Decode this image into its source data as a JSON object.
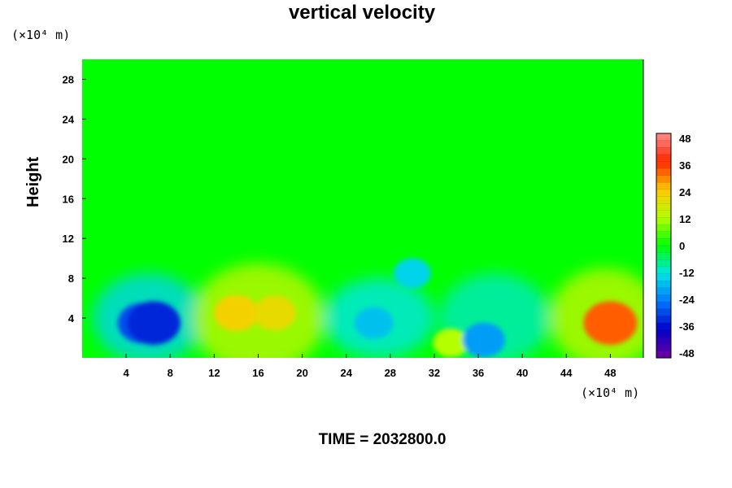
{
  "chart_data": {
    "type": "heatmap",
    "title": "vertical velocity",
    "xlabel": "",
    "ylabel": "Height",
    "x_unit": "(×10⁴ m)",
    "y_unit": "(×10⁴ m)",
    "time_label": "TIME = 2032800.0",
    "xlim": [
      0,
      51
    ],
    "ylim": [
      0,
      30
    ],
    "x_ticks": [
      "4",
      "8",
      "12",
      "16",
      "20",
      "24",
      "28",
      "32",
      "36",
      "40",
      "44",
      "48"
    ],
    "y_ticks": [
      "4",
      "8",
      "12",
      "16",
      "20",
      "24",
      "28"
    ],
    "colorbar": {
      "min": -48,
      "max": 48,
      "ticks": [
        "48",
        "36",
        "24",
        "12",
        "0",
        "-12",
        "-24",
        "-36",
        "-48"
      ]
    },
    "features": [
      {
        "x": 5.5,
        "y": 3.5,
        "value": -28
      },
      {
        "x": 6.5,
        "y": 3.5,
        "value": -32
      },
      {
        "x": 14,
        "y": 4.5,
        "value": 22
      },
      {
        "x": 17.5,
        "y": 4.5,
        "value": 20
      },
      {
        "x": 26.5,
        "y": 3.5,
        "value": -16
      },
      {
        "x": 30,
        "y": 8.5,
        "value": -14
      },
      {
        "x": 33.5,
        "y": 1.5,
        "value": 12
      },
      {
        "x": 36.5,
        "y": 1.8,
        "value": -20
      },
      {
        "x": 48,
        "y": 3.5,
        "value": 32
      }
    ]
  }
}
